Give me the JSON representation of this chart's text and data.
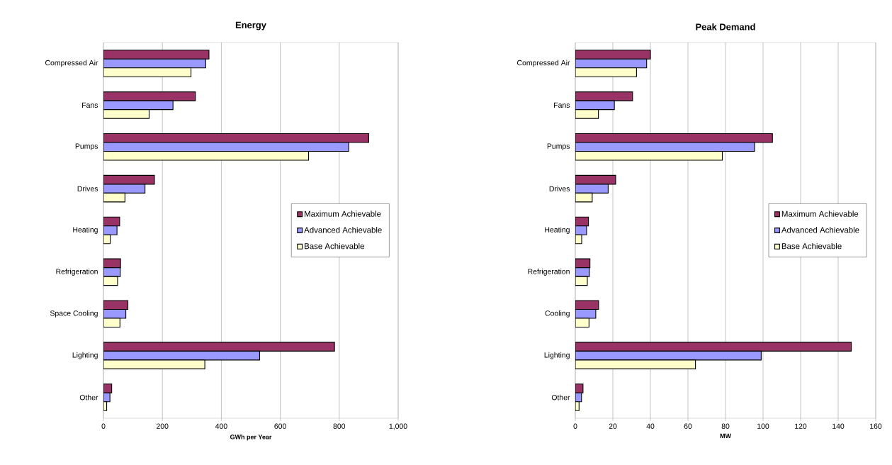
{
  "chart_data": [
    {
      "type": "bar",
      "orientation": "horizontal",
      "title": "Energy",
      "xlabel": "GWh per Year",
      "categories": [
        "Compressed Air",
        "Fans",
        "Pumps",
        "Drives",
        "Heating",
        "Refrigeration",
        "Space Cooling",
        "Lighting",
        "Other"
      ],
      "series": [
        {
          "name": "Maximum Achievable",
          "color": "#993366",
          "values": [
            358,
            312,
            900,
            173,
            55,
            58,
            83,
            784,
            28
          ]
        },
        {
          "name": "Advanced Achievable",
          "color": "#9999ff",
          "values": [
            347,
            236,
            832,
            141,
            46,
            57,
            76,
            530,
            22
          ]
        },
        {
          "name": "Base Achievable",
          "color": "#ffffcc",
          "values": [
            297,
            155,
            696,
            73,
            23,
            48,
            56,
            344,
            11
          ]
        }
      ],
      "xlim": [
        0,
        1000
      ],
      "xticks": [
        0,
        200,
        400,
        600,
        800,
        {
          "value": 1000,
          "label": "1,000"
        }
      ],
      "grid": "x",
      "legend": "right"
    },
    {
      "type": "bar",
      "orientation": "horizontal",
      "title": "Peak Demand",
      "xlabel": "MW",
      "categories": [
        "Compressed Air",
        "Fans",
        "Pumps",
        "Drives",
        "Heating",
        "Refrigeration",
        "Cooling",
        "Lighting",
        "Other"
      ],
      "series": [
        {
          "name": "Maximum Achievable",
          "color": "#993366",
          "values": [
            40,
            30.5,
            105,
            21.5,
            7,
            7.8,
            12.4,
            147,
            4.1
          ]
        },
        {
          "name": "Advanced Achievable",
          "color": "#9999ff",
          "values": [
            38,
            20.8,
            95.5,
            17.5,
            6,
            7.5,
            10.9,
            99,
            3.3
          ]
        },
        {
          "name": "Base Achievable",
          "color": "#ffffcc",
          "values": [
            32.6,
            12.3,
            78.3,
            9,
            3.4,
            6.4,
            7.3,
            64,
            2
          ]
        }
      ],
      "xlim": [
        0,
        160
      ],
      "xticks": [
        0,
        20,
        40,
        60,
        80,
        100,
        120,
        140,
        160
      ],
      "grid": "x",
      "legend": "right"
    }
  ]
}
